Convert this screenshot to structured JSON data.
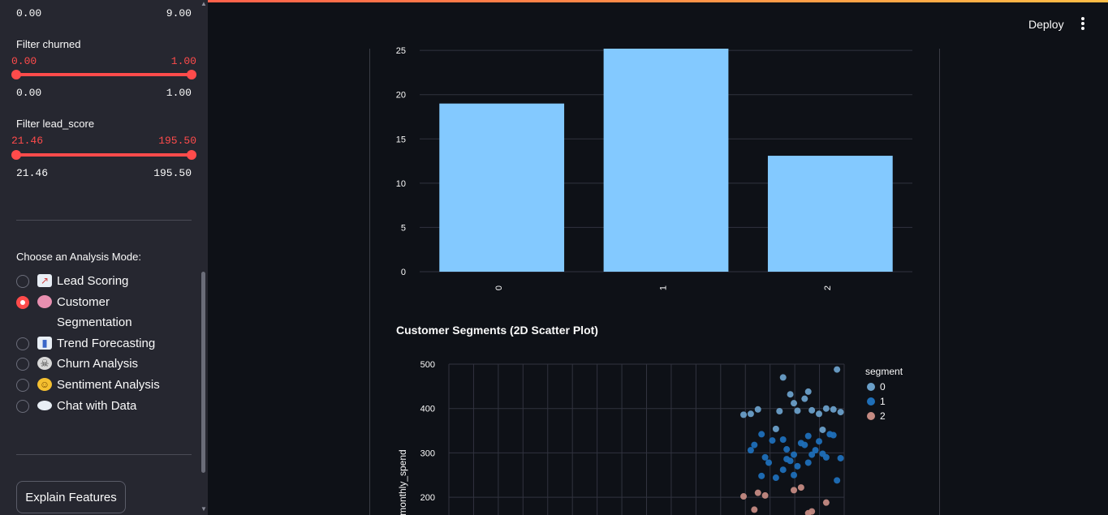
{
  "sidebar": {
    "top_range": {
      "min": "0.00",
      "max": "9.00"
    },
    "filter_churned": {
      "label": "Filter churned",
      "current_min": "0.00",
      "current_max": "1.00",
      "min": "0.00",
      "max": "1.00"
    },
    "filter_lead_score": {
      "label": "Filter lead_score",
      "current_min": "21.46",
      "current_max": "195.50",
      "min": "21.46",
      "max": "195.50"
    },
    "mode_title": "Choose an Analysis Mode:",
    "modes": [
      {
        "label": "Lead Scoring",
        "icon": "chart-up-icon",
        "selected": false
      },
      {
        "label": "Customer",
        "label2": "Segmentation",
        "icon": "brain-icon",
        "selected": true
      },
      {
        "label": "Trend Forecasting",
        "icon": "bar-chart-icon",
        "selected": false
      },
      {
        "label": "Churn Analysis",
        "icon": "skull-icon",
        "selected": false
      },
      {
        "label": "Sentiment Analysis",
        "icon": "smile-icon",
        "selected": false
      },
      {
        "label": "Chat with Data",
        "icon": "speech-bubble-icon",
        "selected": false
      }
    ],
    "explain_button": "Explain Features"
  },
  "header": {
    "deploy": "Deploy"
  },
  "scatter_title": "Customer Segments (2D Scatter Plot)",
  "chart_data": [
    {
      "type": "bar",
      "categories": [
        "0",
        "1",
        "2"
      ],
      "values": [
        19,
        25.2,
        13.1
      ],
      "ylim": [
        0,
        25.2
      ],
      "yticks": [
        "0",
        "5",
        "10",
        "15",
        "20",
        "25"
      ],
      "color": "#83c9ff"
    },
    {
      "type": "scatter",
      "title": "Customer Segments (2D Scatter Plot)",
      "ylabel": "monthly_spend",
      "yticks": [
        "200",
        "300",
        "400",
        "500"
      ],
      "legend_title": "segment",
      "legend": [
        "0",
        "1",
        "2"
      ],
      "colors": [
        "#6a9fc8",
        "#1f6fb8",
        "#c48a82"
      ],
      "series": [
        {
          "name": "0",
          "points": [
            [
              0.82,
              386
            ],
            [
              0.84,
              388
            ],
            [
              0.93,
              470
            ],
            [
              0.95,
              432
            ],
            [
              0.96,
              412
            ],
            [
              0.92,
              394
            ],
            [
              0.99,
              422
            ],
            [
              1.0,
              438
            ],
            [
              1.01,
              396
            ],
            [
              1.03,
              388
            ],
            [
              0.97,
              395
            ],
            [
              1.05,
              400
            ],
            [
              1.07,
              398
            ],
            [
              1.09,
              392
            ],
            [
              1.08,
              488
            ],
            [
              1.04,
              352
            ],
            [
              0.91,
              354
            ],
            [
              0.86,
              398
            ]
          ]
        },
        {
          "name": "1",
          "points": [
            [
              0.85,
              318
            ],
            [
              0.87,
              342
            ],
            [
              0.84,
              306
            ],
            [
              0.9,
              328
            ],
            [
              0.88,
              290
            ],
            [
              0.89,
              278
            ],
            [
              0.87,
              248
            ],
            [
              0.91,
              244
            ],
            [
              0.93,
              262
            ],
            [
              0.94,
              308
            ],
            [
              0.95,
              282
            ],
            [
              0.96,
              296
            ],
            [
              0.97,
              270
            ],
            [
              0.98,
              322
            ],
            [
              0.99,
              318
            ],
            [
              1.0,
              338
            ],
            [
              1.01,
              296
            ],
            [
              1.02,
              306
            ],
            [
              1.03,
              326
            ],
            [
              1.04,
              298
            ],
            [
              1.05,
              290
            ],
            [
              1.06,
              342
            ],
            [
              1.07,
              340
            ],
            [
              1.08,
              238
            ],
            [
              1.09,
              288
            ],
            [
              0.93,
              330
            ],
            [
              0.96,
              250
            ],
            [
              1.0,
              278
            ],
            [
              0.94,
              286
            ]
          ]
        },
        {
          "name": "2",
          "points": [
            [
              0.82,
              202
            ],
            [
              0.86,
              210
            ],
            [
              0.88,
              204
            ],
            [
              0.96,
              216
            ],
            [
              0.98,
              222
            ],
            [
              1.05,
              188
            ],
            [
              0.85,
              172
            ],
            [
              1.0,
              164
            ],
            [
              1.01,
              168
            ]
          ]
        }
      ]
    }
  ]
}
